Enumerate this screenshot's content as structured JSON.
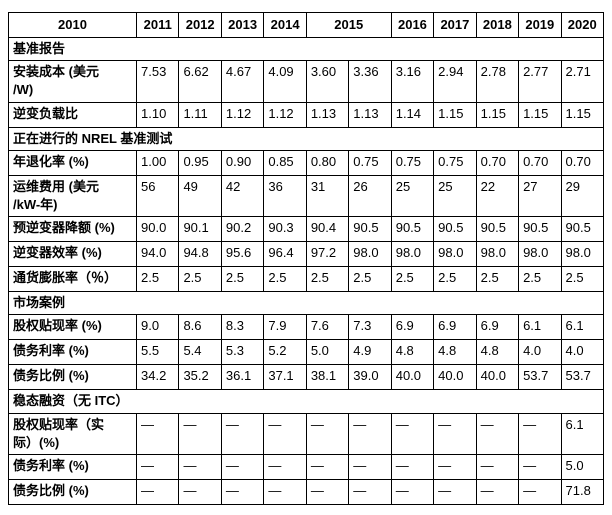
{
  "chart_data": {
    "type": "table",
    "header": {
      "label_column": "2010",
      "year_columns": [
        {
          "label": "2011",
          "span": 1
        },
        {
          "label": "2012",
          "span": 1
        },
        {
          "label": "2013",
          "span": 1
        },
        {
          "label": "2014",
          "span": 1
        },
        {
          "label": "2015",
          "span": 2
        },
        {
          "label": "2016",
          "span": 1
        },
        {
          "label": "2017",
          "span": 1
        },
        {
          "label": "2018",
          "span": 1
        },
        {
          "label": "2019",
          "span": 1
        },
        {
          "label": "2020",
          "span": 1
        }
      ]
    },
    "sections": [
      {
        "title": "基准报告",
        "rows": [
          {
            "label": "安装成本 (美元\n/W)",
            "values": [
              "7.53",
              "6.62",
              "4.67",
              "4.09",
              "3.60",
              "3.36",
              "3.16",
              "2.94",
              "2.78",
              "2.77",
              "2.71"
            ]
          },
          {
            "label": "逆变负载比",
            "values": [
              "1.10",
              "1.11",
              "1.12",
              "1.12",
              "1.13",
              "1.13",
              "1.14",
              "1.15",
              "1.15",
              "1.15",
              "1.15"
            ]
          }
        ]
      },
      {
        "title": "正在进行的 NREL 基准测试",
        "rows": [
          {
            "label": "年退化率 (%)",
            "values": [
              "1.00",
              "0.95",
              "0.90",
              "0.85",
              "0.80",
              "0.75",
              "0.75",
              "0.75",
              "0.70",
              "0.70",
              "0.70"
            ]
          },
          {
            "label": "运维费用 (美元\n/kW-年)",
            "values": [
              "56",
              "49",
              "42",
              "36",
              "31",
              "26",
              "25",
              "25",
              "22",
              "27",
              "29"
            ]
          },
          {
            "label": "预逆变器降额 (%)",
            "values": [
              "90.0",
              "90.1",
              "90.2",
              "90.3",
              "90.4",
              "90.5",
              "90.5",
              "90.5",
              "90.5",
              "90.5",
              "90.5"
            ]
          },
          {
            "label": "逆变器效率 (%)",
            "values": [
              "94.0",
              "94.8",
              "95.6",
              "96.4",
              "97.2",
              "98.0",
              "98.0",
              "98.0",
              "98.0",
              "98.0",
              "98.0"
            ]
          },
          {
            "label": "通货膨胀率（％）",
            "values": [
              "2.5",
              "2.5",
              "2.5",
              "2.5",
              "2.5",
              "2.5",
              "2.5",
              "2.5",
              "2.5",
              "2.5",
              "2.5"
            ]
          }
        ]
      },
      {
        "title": "市场案例",
        "rows": [
          {
            "label": "股权贴现率 (%)",
            "values": [
              "9.0",
              "8.6",
              "8.3",
              "7.9",
              "7.6",
              "7.3",
              "6.9",
              "6.9",
              "6.9",
              "6.1",
              "6.1"
            ]
          },
          {
            "label": "债务利率 (%)",
            "values": [
              "5.5",
              "5.4",
              "5.3",
              "5.2",
              "5.0",
              "4.9",
              "4.8",
              "4.8",
              "4.8",
              "4.0",
              "4.0"
            ]
          },
          {
            "label": "债务比例 (%)",
            "values": [
              "34.2",
              "35.2",
              "36.1",
              "37.1",
              "38.1",
              "39.0",
              "40.0",
              "40.0",
              "40.0",
              "53.7",
              "53.7"
            ]
          }
        ]
      },
      {
        "title": "稳态融资（无 ITC）",
        "rows": [
          {
            "label": "股权贴现率（实\n际）(%)",
            "values": [
              "—",
              "—",
              "—",
              "—",
              "—",
              "—",
              "—",
              "—",
              "—",
              "—",
              "6.1"
            ]
          },
          {
            "label": "债务利率 (%)",
            "values": [
              "—",
              "—",
              "—",
              "—",
              "—",
              "—",
              "—",
              "—",
              "—",
              "—",
              "5.0"
            ]
          },
          {
            "label": "债务比例 (%)",
            "values": [
              "—",
              "—",
              "—",
              "—",
              "—",
              "—",
              "—",
              "—",
              "—",
              "—",
              "71.8"
            ]
          }
        ]
      }
    ]
  }
}
